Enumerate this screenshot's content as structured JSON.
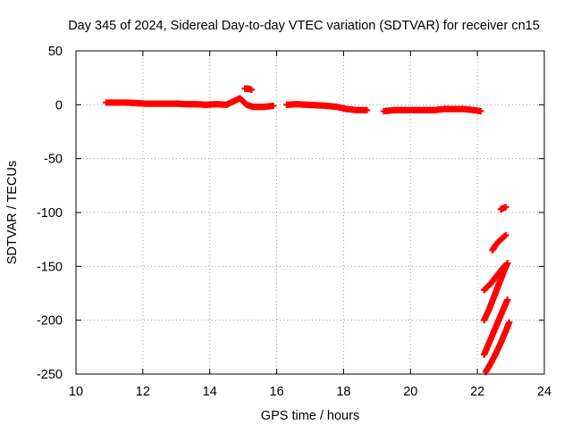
{
  "chart_data": {
    "type": "scatter",
    "title": "Day 345 of 2024, Sidereal Day-to-day VTEC variation (SDTVAR) for receiver cn15",
    "xlabel": "GPS time / hours",
    "ylabel": "SDTVAR / TECUs",
    "xlim": [
      10,
      24
    ],
    "ylim": [
      -250,
      50
    ],
    "xticks": [
      10,
      12,
      14,
      16,
      18,
      20,
      22,
      24
    ],
    "yticks": [
      -250,
      -200,
      -150,
      -100,
      -50,
      0,
      50
    ],
    "grid": true,
    "legend": "none",
    "marker": "plus",
    "series": [
      {
        "name": "SDTVAR",
        "color": "#ff0000",
        "segments": [
          [
            [
              10.9,
              2
            ],
            [
              11.2,
              2
            ],
            [
              11.5,
              2
            ],
            [
              11.8,
              1.5
            ],
            [
              12.1,
              1
            ],
            [
              12.4,
              1
            ],
            [
              12.7,
              1
            ],
            [
              13.0,
              1
            ],
            [
              13.3,
              0.5
            ],
            [
              13.6,
              0.5
            ],
            [
              13.9,
              0
            ],
            [
              14.2,
              0.5
            ],
            [
              14.5,
              0
            ],
            [
              14.7,
              3
            ],
            [
              14.9,
              6
            ],
            [
              15.1,
              0
            ],
            [
              15.3,
              -2
            ],
            [
              15.6,
              -2
            ],
            [
              15.9,
              -1
            ]
          ],
          [
            [
              15.05,
              15
            ],
            [
              15.15,
              15
            ],
            [
              15.25,
              14
            ]
          ],
          [
            [
              16.3,
              0
            ],
            [
              16.6,
              0.5
            ],
            [
              16.9,
              0
            ],
            [
              17.2,
              -0.5
            ],
            [
              17.5,
              -1
            ],
            [
              17.8,
              -2
            ],
            [
              18.1,
              -4
            ],
            [
              18.4,
              -5
            ],
            [
              18.7,
              -5
            ]
          ],
          [
            [
              19.2,
              -6
            ],
            [
              19.5,
              -5
            ],
            [
              19.8,
              -5
            ],
            [
              20.1,
              -5
            ],
            [
              20.4,
              -5
            ],
            [
              20.7,
              -5
            ],
            [
              21.0,
              -4
            ],
            [
              21.3,
              -4
            ],
            [
              21.6,
              -4
            ],
            [
              21.9,
              -5
            ],
            [
              22.1,
              -6
            ]
          ],
          [
            [
              22.7,
              -97
            ],
            [
              22.85,
              -95
            ]
          ],
          [
            [
              22.45,
              -135
            ],
            [
              22.55,
              -130
            ],
            [
              22.7,
              -125
            ],
            [
              22.85,
              -121
            ]
          ],
          [
            [
              22.2,
              -172
            ],
            [
              22.4,
              -166
            ],
            [
              22.6,
              -158
            ],
            [
              22.8,
              -150
            ]
          ],
          [
            [
              22.2,
              -200
            ],
            [
              22.35,
              -190
            ],
            [
              22.5,
              -178
            ],
            [
              22.65,
              -166
            ],
            [
              22.8,
              -154
            ],
            [
              22.9,
              -147
            ]
          ],
          [
            [
              22.2,
              -232
            ],
            [
              22.35,
              -221
            ],
            [
              22.5,
              -210
            ],
            [
              22.65,
              -199
            ],
            [
              22.8,
              -188
            ],
            [
              22.9,
              -181
            ]
          ],
          [
            [
              22.25,
              -248
            ],
            [
              22.4,
              -240
            ],
            [
              22.55,
              -231
            ],
            [
              22.7,
              -221
            ],
            [
              22.85,
              -210
            ],
            [
              22.95,
              -202
            ]
          ]
        ]
      }
    ]
  }
}
